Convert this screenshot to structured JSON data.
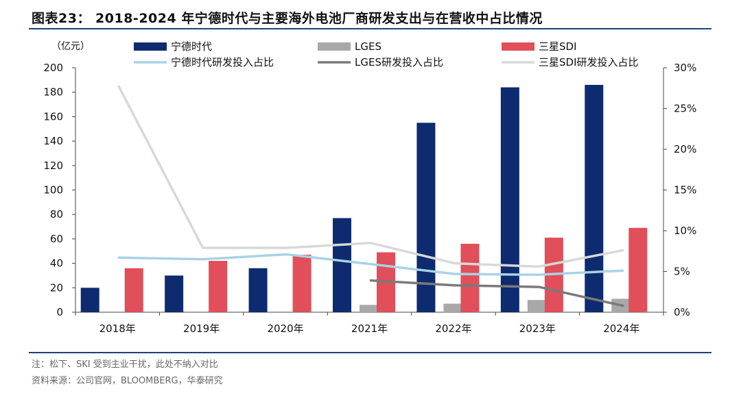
{
  "title": "图表23： 2018-2024 年宁德时代与主要海外电池厂商研发支出与在营收中占比情况",
  "note": "注：松下、SKI 受到主业干扰，此处不纳入对比",
  "source": "资料来源：公司官网，BLOOMBERG，华泰研究",
  "colors": {
    "catl_bar": "#0d2b6e",
    "lges_bar": "#a8a8a8",
    "sdi_bar": "#e04f5a",
    "catl_line": "#a9d2e6",
    "lges_line": "#7a7a7a",
    "sdi_line": "#d8d8d8",
    "rule": "#1f3f7a"
  },
  "chart_data": {
    "type": "bar",
    "title": "图表23： 2018-2024 年宁德时代与主要海外电池厂商研发支出与在营收中占比情况",
    "ylabel": "（亿元）",
    "ylim": [
      0,
      200
    ],
    "yticks": [
      "0",
      "20",
      "40",
      "60",
      "80",
      "100",
      "120",
      "140",
      "160",
      "180",
      "200"
    ],
    "y2lim": [
      0,
      30
    ],
    "y2ticks": [
      "0%",
      "5%",
      "10%",
      "15%",
      "20%",
      "25%",
      "30%"
    ],
    "categories": [
      "2018年",
      "2019年",
      "2020年",
      "2021年",
      "2022年",
      "2023年",
      "2024年"
    ],
    "legend_placement": "top",
    "grid": false,
    "bar_series": [
      {
        "name": "宁德时代",
        "values": [
          20,
          30,
          36,
          77,
          155,
          184,
          186
        ]
      },
      {
        "name": "LGES",
        "values": [
          null,
          null,
          null,
          6,
          7,
          10,
          11
        ]
      },
      {
        "name": "三星SDI",
        "values": [
          36,
          42,
          47,
          49,
          56,
          61,
          69
        ]
      }
    ],
    "line_series": [
      {
        "name": "宁德时代研发投入占比",
        "axis": "right",
        "values": [
          6.7,
          6.5,
          7.1,
          5.9,
          4.7,
          4.6,
          5.1
        ]
      },
      {
        "name": "LGES研发投入占比",
        "axis": "right",
        "values": [
          null,
          null,
          null,
          3.9,
          3.3,
          3.1,
          0.8
        ]
      },
      {
        "name": "三星SDI研发投入占比",
        "axis": "right",
        "values": [
          27.7,
          7.9,
          7.9,
          8.5,
          6.0,
          5.6,
          7.6
        ]
      }
    ]
  }
}
